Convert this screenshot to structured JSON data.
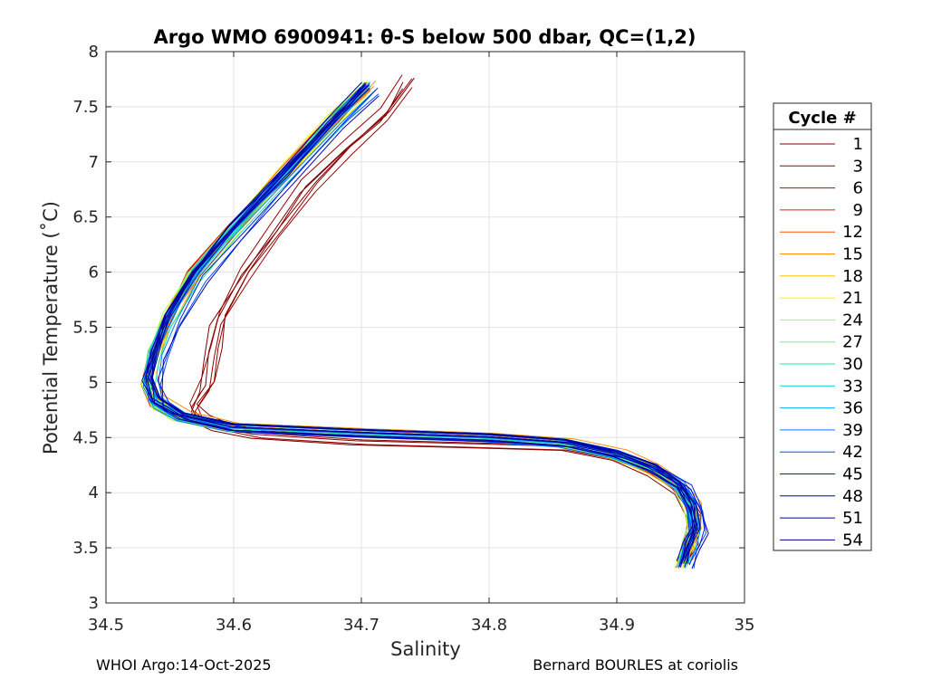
{
  "chart_data": {
    "type": "line",
    "title": "Argo WMO 6900941: θ-S below 500 dbar,  QC=(1,2)",
    "xlabel": "Salinity",
    "ylabel": "Potential Temperature (˚C)",
    "xlim": [
      34.5,
      35.0
    ],
    "ylim": [
      3.0,
      8.0
    ],
    "xticks": [
      "34.5",
      "34.6",
      "34.7",
      "34.8",
      "34.9",
      "35"
    ],
    "yticks": [
      "3",
      "3.5",
      "4",
      "4.5",
      "5",
      "5.5",
      "6",
      "6.5",
      "7",
      "7.5",
      "8"
    ],
    "grid": true,
    "legend": {
      "title": "Cycle #",
      "placement": "outside-right",
      "entries": [
        {
          "label": "1",
          "color": "#800000"
        },
        {
          "label": "3",
          "color": "#9a0000"
        },
        {
          "label": "6",
          "color": "#c00000"
        },
        {
          "label": "9",
          "color": "#e02000"
        },
        {
          "label": "12",
          "color": "#ff5000"
        },
        {
          "label": "15",
          "color": "#ff9000"
        },
        {
          "label": "18",
          "color": "#ffc000"
        },
        {
          "label": "21",
          "color": "#f0f000"
        },
        {
          "label": "24",
          "color": "#a0ff40"
        },
        {
          "label": "27",
          "color": "#60ff80"
        },
        {
          "label": "30",
          "color": "#20e0b0"
        },
        {
          "label": "33",
          "color": "#00d0e0"
        },
        {
          "label": "36",
          "color": "#00b0ff"
        },
        {
          "label": "39",
          "color": "#0080ff"
        },
        {
          "label": "42",
          "color": "#0050ff"
        },
        {
          "label": "45",
          "color": "#0020e0"
        },
        {
          "label": "48",
          "color": "#0000c0"
        },
        {
          "label": "51",
          "color": "#0000a0"
        },
        {
          "label": "54",
          "color": "#000090"
        }
      ]
    },
    "base_profile": {
      "S": [
        34.705,
        34.68,
        34.64,
        34.6,
        34.57,
        34.55,
        34.54,
        34.535,
        34.54,
        34.56,
        34.6,
        34.7,
        34.8,
        34.86,
        34.9,
        34.93,
        34.95,
        34.96,
        34.962,
        34.958,
        34.952
      ],
      "T": [
        7.7,
        7.4,
        6.9,
        6.4,
        6.0,
        5.6,
        5.3,
        5.05,
        4.85,
        4.72,
        4.62,
        4.57,
        4.53,
        4.48,
        4.38,
        4.25,
        4.1,
        3.9,
        3.7,
        3.55,
        3.38
      ]
    },
    "early_cycle_profile": {
      "S": [
        34.738,
        34.72,
        34.69,
        34.66,
        34.635,
        34.61,
        34.59,
        34.585,
        34.58,
        34.57,
        34.575,
        34.59,
        34.62,
        34.7,
        34.8,
        34.86,
        34.9,
        34.93,
        34.95,
        34.962,
        34.96,
        34.955
      ],
      "T": [
        7.75,
        7.45,
        7.15,
        6.8,
        6.4,
        6.0,
        5.6,
        5.3,
        5.0,
        4.8,
        4.7,
        4.63,
        4.56,
        4.5,
        4.47,
        4.45,
        4.36,
        4.22,
        4.05,
        3.8,
        3.6,
        3.42
      ]
    },
    "footer_left": "WHOI Argo:14-Oct-2025",
    "footer_right": "Bernard BOURLES at coriolis"
  }
}
